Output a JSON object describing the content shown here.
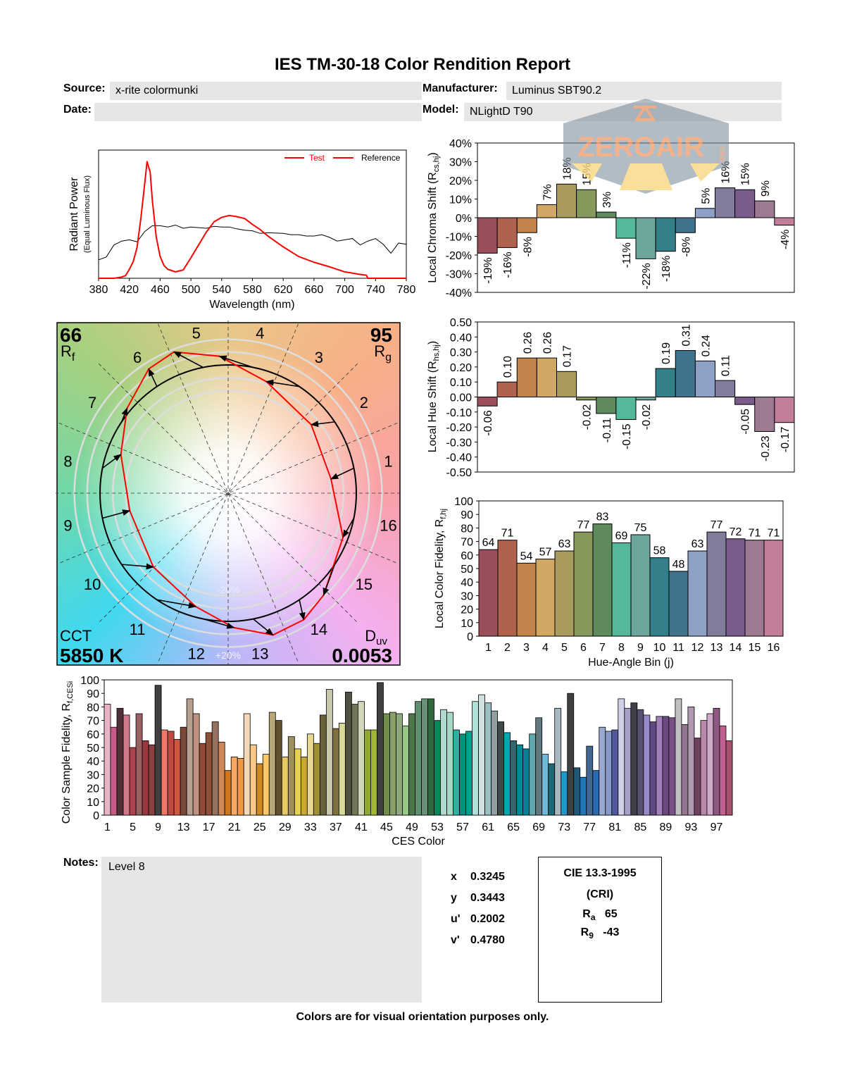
{
  "title": "IES TM-30-18 Color Rendition Report",
  "header": {
    "source_label": "Source:",
    "source_value": "x-rite colormunki",
    "date_label": "Date:",
    "date_value": "",
    "manufacturer_label": "Manufacturer:",
    "manufacturer_value": "Luminus SBT90.2",
    "model_label": "Model:",
    "model_value": "NLightD T90"
  },
  "watermark": {
    "text": "ZEROAIR",
    "suffix": "ORG"
  },
  "summary": {
    "rf_value": "66",
    "rf_label": "R",
    "rf_sub": "f",
    "rg_value": "95",
    "rg_label": "R",
    "rg_sub": "g",
    "cct_label": "CCT",
    "cct_value": "5850 K",
    "duv_label": "D",
    "duv_sub": "uv",
    "duv_value": "0.0053",
    "plus20": "+20%",
    "minus20": "-20%"
  },
  "chart_data": [
    {
      "type": "line",
      "xlabel": "Wavelength (nm)",
      "ylabel": "Radiant Power",
      "ylabel2": "(Equal Luminous Flux)",
      "xlim": [
        380,
        780
      ],
      "xticks": [
        380,
        420,
        460,
        500,
        540,
        580,
        620,
        660,
        700,
        740,
        780
      ],
      "ylim": [
        0,
        1
      ],
      "legend": {
        "placement": "top-right",
        "entries": [
          "Test",
          "Reference"
        ]
      },
      "colors": {
        "test": "#ff0000",
        "reference": "#000000",
        "test_label": "#ff0000",
        "reference_label": "#000000"
      },
      "series": [
        {
          "name": "Test",
          "x": [
            380,
            390,
            400,
            405,
            410,
            415,
            420,
            425,
            430,
            435,
            440,
            443,
            447,
            450,
            455,
            460,
            465,
            470,
            480,
            490,
            500,
            510,
            520,
            530,
            540,
            550,
            560,
            570,
            580,
            590,
            600,
            620,
            640,
            660,
            680,
            700,
            720,
            728,
            730,
            780
          ],
          "y": [
            0,
            0,
            0,
            0.005,
            0.01,
            0.02,
            0.07,
            0.13,
            0.24,
            0.47,
            0.74,
            0.91,
            0.83,
            0.6,
            0.32,
            0.17,
            0.1,
            0.07,
            0.05,
            0.065,
            0.16,
            0.26,
            0.36,
            0.44,
            0.475,
            0.49,
            0.48,
            0.466,
            0.42,
            0.38,
            0.33,
            0.245,
            0.17,
            0.125,
            0.09,
            0.05,
            0.03,
            0.024,
            0,
            0
          ]
        },
        {
          "name": "Reference",
          "x": [
            380,
            390,
            400,
            410,
            420,
            430,
            440,
            450,
            460,
            470,
            480,
            490,
            500,
            520,
            530,
            540,
            550,
            560,
            570,
            580,
            590,
            600,
            620,
            630,
            640,
            650,
            660,
            670,
            680,
            690,
            700,
            710,
            720,
            730,
            740,
            750,
            760,
            770,
            780
          ],
          "y": [
            0.144,
            0.166,
            0.26,
            0.29,
            0.3,
            0.285,
            0.365,
            0.41,
            0.41,
            0.4,
            0.415,
            0.39,
            0.4,
            0.39,
            0.405,
            0.4,
            0.4,
            0.385,
            0.375,
            0.37,
            0.35,
            0.355,
            0.35,
            0.34,
            0.34,
            0.33,
            0.33,
            0.34,
            0.32,
            0.29,
            0.3,
            0.31,
            0.26,
            0.29,
            0.31,
            0.265,
            0.195,
            0.275,
            0.265
          ]
        }
      ]
    },
    {
      "type": "bar",
      "ylabel": "Local Chroma Shift (R",
      "ylabel_sub": "cs,hj",
      "ylabel_end": ")",
      "ylim": [
        -40,
        40
      ],
      "yticks": [
        40,
        30,
        20,
        10,
        0,
        -10,
        -20,
        -30,
        -40
      ],
      "unit": "%",
      "categories": [
        1,
        2,
        3,
        4,
        5,
        6,
        7,
        8,
        9,
        10,
        11,
        12,
        13,
        14,
        15,
        16
      ],
      "values": [
        -19,
        -16,
        -8,
        7,
        18,
        15,
        3,
        -11,
        -22,
        -18,
        -8,
        5,
        16,
        15,
        9,
        -4
      ]
    },
    {
      "type": "bar",
      "ylabel": "Local Hue Shift (R",
      "ylabel_sub": "hs,hj",
      "ylabel_end": ")",
      "ylim": [
        -0.5,
        0.5
      ],
      "yticks": [
        0.5,
        0.4,
        0.3,
        0.2,
        0.1,
        0,
        -0.1,
        -0.2,
        -0.3,
        -0.4,
        -0.5
      ],
      "categories": [
        1,
        2,
        3,
        4,
        5,
        6,
        7,
        8,
        9,
        10,
        11,
        12,
        13,
        14,
        15,
        16
      ],
      "values": [
        -0.06,
        0.1,
        0.26,
        0.26,
        0.17,
        -0.02,
        -0.11,
        -0.15,
        -0.02,
        0.19,
        0.31,
        0.24,
        0.11,
        -0.05,
        -0.23,
        -0.17
      ]
    },
    {
      "type": "bar",
      "ylabel": "Local Color Fidelity, R",
      "ylabel_sub": "f,hj",
      "xlabel": "Hue-Angle Bin (j)",
      "ylim": [
        0,
        100
      ],
      "yticks": [
        0,
        10,
        20,
        30,
        40,
        50,
        60,
        70,
        80,
        90,
        100
      ],
      "categories": [
        1,
        2,
        3,
        4,
        5,
        6,
        7,
        8,
        9,
        10,
        11,
        12,
        13,
        14,
        15,
        16
      ],
      "values": [
        64,
        71,
        54,
        57,
        63,
        77,
        83,
        69,
        75,
        58,
        48,
        63,
        77,
        72,
        71,
        71
      ],
      "colors": [
        "#9a4f5a",
        "#b0624f",
        "#c3834d",
        "#d0a864",
        "#a99a5e",
        "#86985c",
        "#5e8a5e",
        "#55b89a",
        "#6ea59d",
        "#34808a",
        "#41738f",
        "#8fa0c5",
        "#827c9b",
        "#7a5c8c",
        "#9b7a92",
        "#c27d9a"
      ]
    },
    {
      "type": "bar",
      "ylabel": "Color Sample Fidelity, R",
      "ylabel_sub": "f,CESi",
      "xlabel": "CES Color",
      "ylim": [
        0,
        100
      ],
      "yticks": [
        0,
        10,
        20,
        30,
        40,
        50,
        60,
        70,
        80,
        90,
        100
      ],
      "xticks": [
        1,
        5,
        9,
        13,
        17,
        21,
        25,
        29,
        33,
        37,
        41,
        45,
        49,
        53,
        57,
        61,
        65,
        69,
        73,
        77,
        81,
        85,
        89,
        93,
        97
      ],
      "values": [
        82,
        65,
        79,
        74,
        50,
        75,
        55,
        52,
        96,
        63,
        62,
        56,
        65,
        86,
        75,
        53,
        61,
        69,
        54,
        33,
        43,
        42,
        75,
        52,
        38,
        45,
        76,
        70,
        43,
        58,
        49,
        43,
        60,
        53,
        74,
        93,
        64,
        68,
        91,
        82,
        84,
        63,
        63,
        98,
        75,
        76,
        75,
        66,
        75,
        84,
        86,
        86,
        70,
        78,
        76,
        63,
        60,
        62,
        84,
        89,
        83,
        77,
        69,
        61,
        55,
        52,
        49,
        60,
        72,
        45,
        38,
        79,
        32,
        90,
        35,
        28,
        51,
        33,
        65,
        62,
        63,
        86,
        79,
        83,
        78,
        74,
        69,
        73,
        73,
        72,
        86,
        67,
        80,
        57,
        70,
        75,
        79,
        66,
        55
      ],
      "colors": [
        "#e8b4c8",
        "#c85a88",
        "#503038",
        "#d07888",
        "#b04050",
        "#986060",
        "#983840",
        "#884040",
        "#404040",
        "#f07868",
        "#c04840",
        "#d05840",
        "#7a4838",
        "#b8a090",
        "#c09080",
        "#904a38",
        "#905038",
        "#987060",
        "#d08858",
        "#d07820",
        "#f8a860",
        "#f09848",
        "#f0d8b8",
        "#f8c888",
        "#d08820",
        "#f8c868",
        "#b8a878",
        "#605030",
        "#e8c860",
        "#a09060",
        "#e8d050",
        "#c8a830",
        "#e8d890",
        "#a09030",
        "#686038",
        "#c8c8b0",
        "#807040",
        "#d8d898",
        "#505040",
        "#707858",
        "#d0d8b8",
        "#90a838",
        "#a0b830",
        "#404040",
        "#709048",
        "#88a068",
        "#90a880",
        "#98c888",
        "#4a7848",
        "#609070",
        "#6a9078",
        "#306840",
        "#008858",
        "#b0d8d0",
        "#a8d8c8",
        "#30b0a0",
        "#009080",
        "#00a090",
        "#b0e0d8",
        "#d0e0e0",
        "#98c0c0",
        "#90a0a0",
        "#404848",
        "#00a8b0",
        "#306870",
        "#008898",
        "#008090",
        "#60a8b0",
        "#607880",
        "#70b8d8",
        "#206878",
        "#a8b8c0",
        "#2098c8",
        "#404040",
        "#205878",
        "#2078b8",
        "#406890",
        "#2868b0",
        "#98a8d0",
        "#8898c8",
        "#5058a0",
        "#d0d0e8",
        "#a8a0c8",
        "#404048",
        "#585070",
        "#9888c8",
        "#604880",
        "#a080b8",
        "#6a4880",
        "#7a5088",
        "#c0c0c0",
        "#907890",
        "#b098b0",
        "#704060",
        "#b888a8",
        "#d0a8c8",
        "#905880",
        "#c06090",
        "#a85070"
      ]
    }
  ],
  "vector_graphic": {
    "bin_labels": [
      "1",
      "2",
      "3",
      "4",
      "5",
      "6",
      "7",
      "8",
      "9",
      "10",
      "11",
      "12",
      "13",
      "14",
      "15",
      "16"
    ],
    "test_color": "#ff0000",
    "reference_color": "#000000"
  },
  "notes": {
    "label": "Notes:",
    "value": "Level 8"
  },
  "chromaticity": [
    {
      "label": "x",
      "value": "0.3245"
    },
    {
      "label": "y",
      "value": "0.3443"
    },
    {
      "label": "u'",
      "value": "0.2002"
    },
    {
      "label": "v'",
      "value": "0.4780"
    }
  ],
  "cri": {
    "title": "CIE 13.3-1995",
    "subtitle": "(CRI)",
    "ra_label": "R",
    "ra_sub": "a",
    "ra_value": "65",
    "r9_label": "R",
    "r9_sub": "9",
    "r9_value": "-43"
  },
  "footer": "Colors are for visual orientation purposes only."
}
